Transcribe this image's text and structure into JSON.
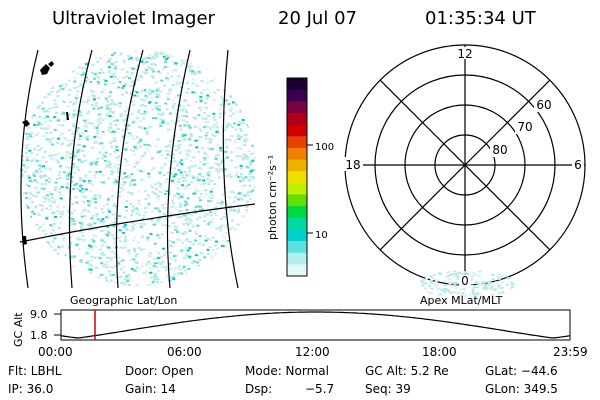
{
  "header": {
    "instrument": "Ultraviolet Imager",
    "date": "20 Jul 07",
    "time": "01:35:34 UT"
  },
  "colorbar": {
    "unit_label": "photon cm⁻²s⁻¹",
    "tick_labels": [
      "100",
      "10"
    ],
    "colors": [
      "#1a0030",
      "#3a0050",
      "#7a0040",
      "#b0001a",
      "#d00000",
      "#e84000",
      "#f08000",
      "#f0b000",
      "#f0e000",
      "#c0f000",
      "#60e000",
      "#00d840",
      "#00d8a0",
      "#00d0d0",
      "#60e0e0",
      "#b0f0f0",
      "#e0f8f8"
    ]
  },
  "panels": {
    "left_label": "Geographic Lat/Lon",
    "right_label": "Apex MLat/MLT",
    "polar": {
      "mlt_labels": {
        "top": "12",
        "left": "18",
        "right": "6",
        "bottom": "0"
      },
      "lat_labels": [
        "60",
        "70",
        "80"
      ]
    }
  },
  "altitude_plot": {
    "ylabel": "GC Alt",
    "ytick_labels": [
      "9.0",
      "1.8"
    ],
    "xtick_labels": [
      "00:00",
      "06:00",
      "12:00",
      "18:00",
      "23:59"
    ],
    "marker_color": "#d00000"
  },
  "info": {
    "flt": "Flt: LBHL",
    "door": "Door: Open",
    "mode": "Mode: Normal",
    "gc_alt": "GC Alt: 5.2 Re",
    "glat": "GLat: −44.6",
    "ip": "IP: 36.0",
    "gain": "Gain: 14",
    "dsp_label": "Dsp:",
    "dsp_value": "−5.7",
    "seq": "Seq: 39",
    "glon": "GLon: 349.5"
  },
  "colors": {
    "image_dots": [
      "#b8e8e8",
      "#60d8d8",
      "#d8efef",
      "#00c8c8"
    ]
  }
}
